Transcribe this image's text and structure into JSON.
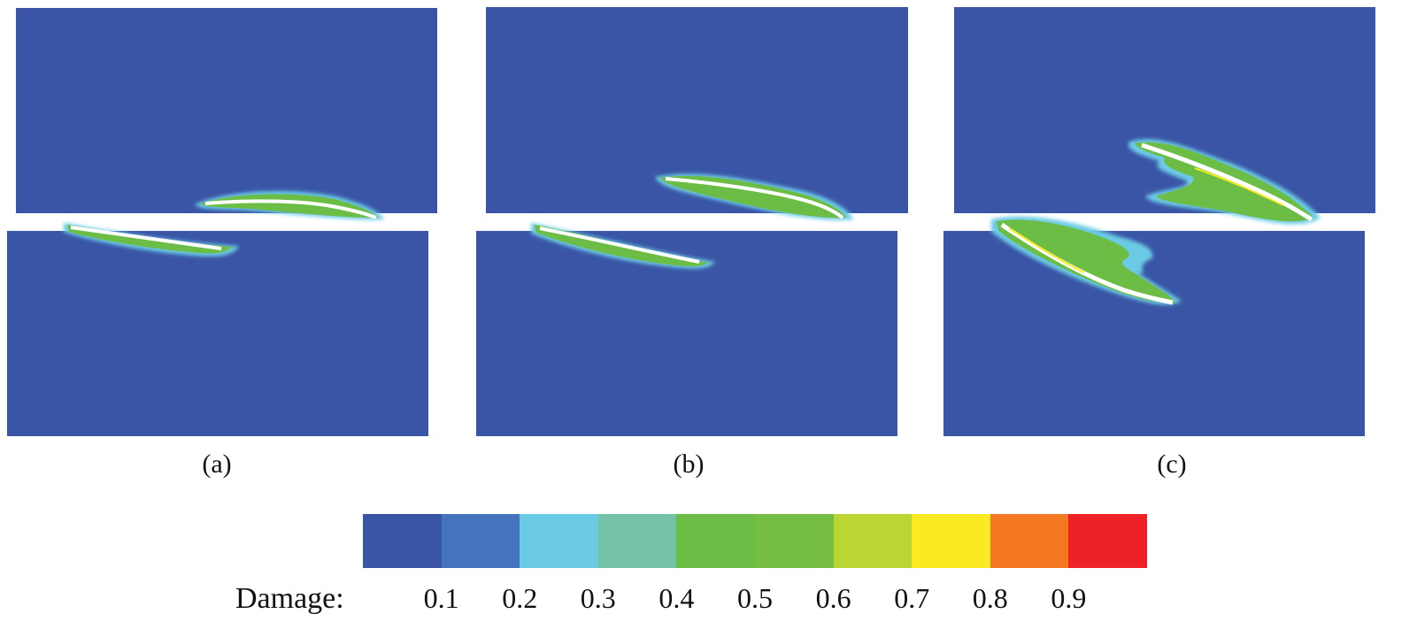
{
  "panels": [
    {
      "caption": "(a)"
    },
    {
      "caption": "(b)"
    },
    {
      "caption": "(c)"
    }
  ],
  "legend": {
    "title": "Damage:",
    "ticks": [
      "0.1",
      "0.2",
      "0.3",
      "0.4",
      "0.5",
      "0.6",
      "0.7",
      "0.8",
      "0.9"
    ],
    "colors": [
      "#3a55a6",
      "#4474bd",
      "#6ccbe4",
      "#74c3a7",
      "#6cbd45",
      "#76bd43",
      "#bbd532",
      "#fbe922",
      "#f37821",
      "#ee2226"
    ]
  },
  "colors": {
    "background_mesh": "#3a55a6",
    "crack_core": "#ffffff",
    "crack_halo": "#6ccbe4",
    "crack_band": "#6cbd45"
  }
}
